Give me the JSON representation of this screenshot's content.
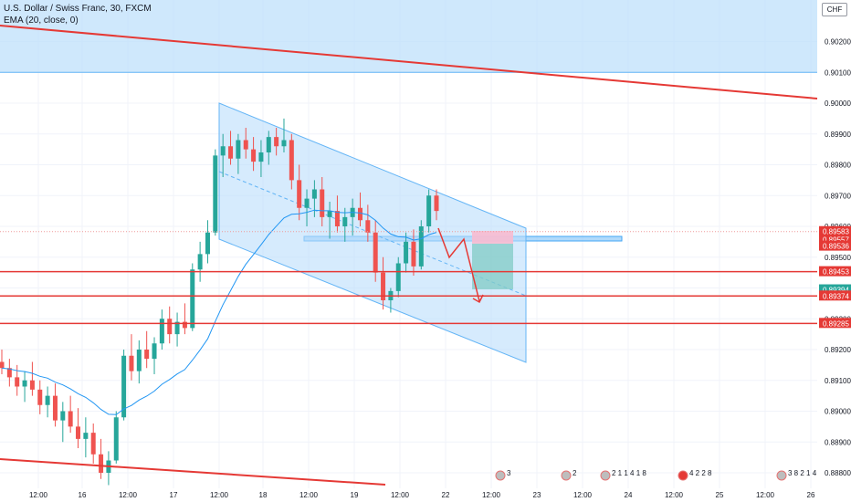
{
  "header": {
    "symbol_line": "U.S. Dollar / Swiss Franc, 30, FXCM",
    "indicator_line": "EMA (20, close, 0)",
    "currency_badge": "CHF"
  },
  "chart_data": {
    "type": "candlestick",
    "symbol": "USDCHF",
    "timeframe": "30",
    "ylim": [
      0.8875,
      0.9055
    ],
    "price_ticks": [
      "0.90200",
      "0.90100",
      "0.90000",
      "0.89900",
      "0.89800",
      "0.89700",
      "0.89600",
      "0.89500",
      "0.89400",
      "0.89300",
      "0.89200",
      "0.89100",
      "0.89000",
      "0.88900",
      "0.88800"
    ],
    "x_ticks": [
      "12:00",
      "16",
      "12:00",
      "17",
      "12:00",
      "18",
      "12:00",
      "19",
      "12:00",
      "22",
      "12:00",
      "23",
      "12:00",
      "24",
      "12:00",
      "25",
      "12:00",
      "26"
    ],
    "price_tags": [
      {
        "label": "0.89583",
        "color": "#e53935",
        "price": 0.89583
      },
      {
        "label": "0.89557",
        "color": "#e53935",
        "price": 0.89557
      },
      {
        "label": "0.89536",
        "color": "#e53935",
        "price": 0.89536
      },
      {
        "label": "0.89453",
        "color": "#e53935",
        "price": 0.89453
      },
      {
        "label": "0.89394",
        "color": "#26a69a",
        "price": 0.89394
      },
      {
        "label": "0.89374",
        "color": "#e53935",
        "price": 0.89374
      },
      {
        "label": "0.89285",
        "color": "#e53935",
        "price": 0.89285
      }
    ],
    "horizontal_levels": [
      0.89453,
      0.89374,
      0.89285
    ],
    "zones": {
      "top_zone": {
        "from": 0.901,
        "to": 0.9055,
        "color": "#bbdefb"
      },
      "resistance_box": {
        "from": 0.89552,
        "to": 0.89567,
        "color": "#90caf9"
      }
    },
    "colors": {
      "up": "#26a69a",
      "down": "#ef5350",
      "ema": "#2196f3",
      "trendline": "#e53935",
      "channel": "#64b5f6"
    },
    "candles": [
      [
        0.8916,
        0.892,
        0.8912,
        0.8914
      ],
      [
        0.8914,
        0.8917,
        0.8908,
        0.8911
      ],
      [
        0.8911,
        0.8915,
        0.8905,
        0.8908
      ],
      [
        0.8908,
        0.8913,
        0.8903,
        0.891
      ],
      [
        0.891,
        0.8916,
        0.8905,
        0.8907
      ],
      [
        0.8907,
        0.891,
        0.8899,
        0.8902
      ],
      [
        0.8902,
        0.8908,
        0.8898,
        0.8905
      ],
      [
        0.8905,
        0.8909,
        0.8895,
        0.8897
      ],
      [
        0.8897,
        0.8903,
        0.889,
        0.89
      ],
      [
        0.89,
        0.8905,
        0.8893,
        0.8895
      ],
      [
        0.8895,
        0.8901,
        0.8888,
        0.8891
      ],
      [
        0.8891,
        0.8898,
        0.8885,
        0.8893
      ],
      [
        0.8893,
        0.8896,
        0.8883,
        0.8886
      ],
      [
        0.8886,
        0.8891,
        0.8878,
        0.888
      ],
      [
        0.888,
        0.8887,
        0.8876,
        0.8884
      ],
      [
        0.8884,
        0.89,
        0.8883,
        0.8898
      ],
      [
        0.8898,
        0.892,
        0.8897,
        0.8918
      ],
      [
        0.8918,
        0.8925,
        0.891,
        0.8913
      ],
      [
        0.8913,
        0.8923,
        0.8909,
        0.892
      ],
      [
        0.892,
        0.8926,
        0.8914,
        0.8917
      ],
      [
        0.8917,
        0.8924,
        0.8912,
        0.8922
      ],
      [
        0.8922,
        0.8933,
        0.892,
        0.893
      ],
      [
        0.893,
        0.8934,
        0.8922,
        0.8925
      ],
      [
        0.8925,
        0.8932,
        0.8921,
        0.8929
      ],
      [
        0.8929,
        0.8935,
        0.8925,
        0.8927
      ],
      [
        0.8927,
        0.8948,
        0.8926,
        0.8946
      ],
      [
        0.8946,
        0.8955,
        0.8942,
        0.8951
      ],
      [
        0.8951,
        0.8962,
        0.8948,
        0.8958
      ],
      [
        0.8958,
        0.8985,
        0.8957,
        0.8983
      ],
      [
        0.8983,
        0.899,
        0.8976,
        0.8986
      ],
      [
        0.8986,
        0.8991,
        0.898,
        0.8982
      ],
      [
        0.8982,
        0.899,
        0.8977,
        0.8988
      ],
      [
        0.8988,
        0.8992,
        0.8982,
        0.8985
      ],
      [
        0.8985,
        0.8989,
        0.8978,
        0.8981
      ],
      [
        0.8981,
        0.8988,
        0.8976,
        0.8984
      ],
      [
        0.8984,
        0.8991,
        0.898,
        0.8989
      ],
      [
        0.8989,
        0.8992,
        0.8983,
        0.8986
      ],
      [
        0.8986,
        0.8995,
        0.8984,
        0.8988
      ],
      [
        0.8988,
        0.899,
        0.8972,
        0.8975
      ],
      [
        0.8975,
        0.898,
        0.8962,
        0.8966
      ],
      [
        0.8966,
        0.8972,
        0.896,
        0.8969
      ],
      [
        0.8969,
        0.8975,
        0.8963,
        0.8972
      ],
      [
        0.8972,
        0.8976,
        0.896,
        0.8963
      ],
      [
        0.8963,
        0.8968,
        0.8956,
        0.8965
      ],
      [
        0.8965,
        0.897,
        0.8958,
        0.896
      ],
      [
        0.896,
        0.8966,
        0.8955,
        0.8963
      ],
      [
        0.8963,
        0.8969,
        0.8957,
        0.8966
      ],
      [
        0.8966,
        0.8971,
        0.896,
        0.8962
      ],
      [
        0.8962,
        0.8967,
        0.8955,
        0.8958
      ],
      [
        0.8958,
        0.8962,
        0.8942,
        0.8945
      ],
      [
        0.8945,
        0.895,
        0.8933,
        0.8936
      ],
      [
        0.8936,
        0.894,
        0.8932,
        0.8939
      ],
      [
        0.8939,
        0.895,
        0.8937,
        0.8948
      ],
      [
        0.8948,
        0.8958,
        0.8945,
        0.8955
      ],
      [
        0.8955,
        0.8959,
        0.8944,
        0.8947
      ],
      [
        0.8947,
        0.8962,
        0.8946,
        0.896
      ],
      [
        0.896,
        0.8972,
        0.8958,
        0.897
      ],
      [
        0.897,
        0.8972,
        0.8962,
        0.8965
      ]
    ]
  },
  "footer_events": [
    {
      "label": "3"
    },
    {
      "label": "2"
    },
    {
      "label": "2 1 1 4 1 8"
    },
    {
      "label": "4 2 2 8"
    },
    {
      "label": "3 8 2 1 4"
    }
  ]
}
